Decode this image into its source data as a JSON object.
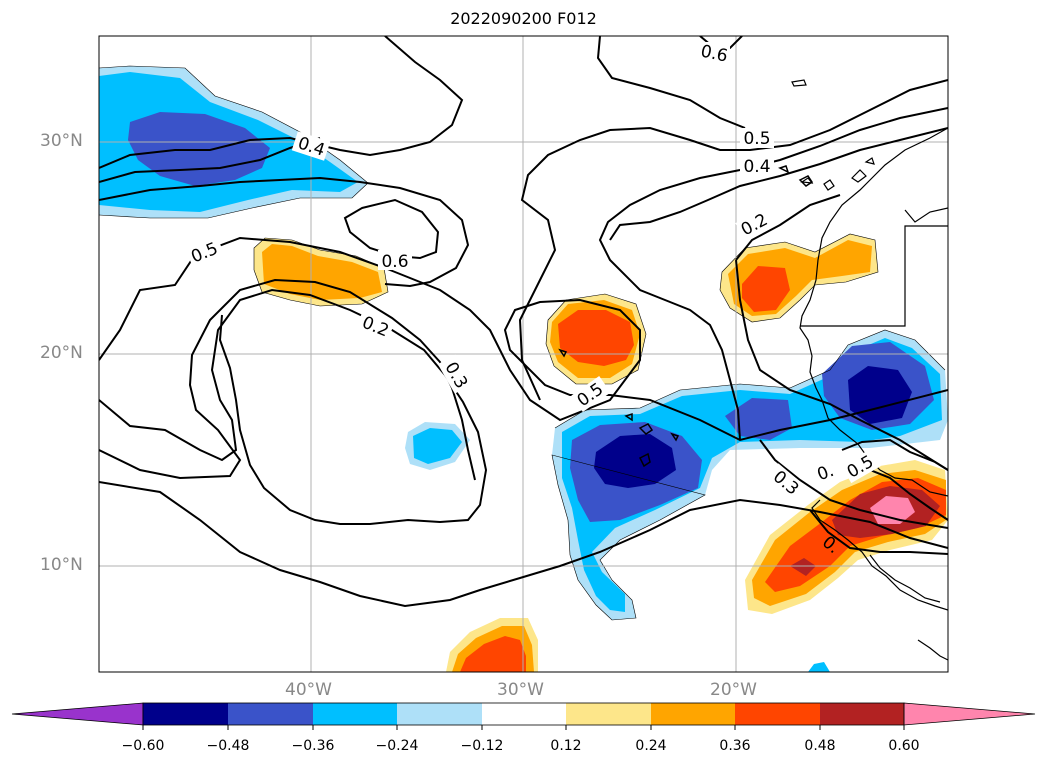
{
  "title": "2022090200 F012",
  "lat_labels": [
    "30°N",
    "20°N",
    "10°N"
  ],
  "lon_labels": [
    "40°W",
    "30°W",
    "20°W"
  ],
  "contour_labels": [
    "0.6",
    "0.5",
    "0.4",
    "0.4",
    "0.2",
    "0.5",
    "0.6",
    "0.2",
    "0.3",
    "0.5",
    "0.3",
    "0.",
    "0.5",
    "0."
  ],
  "colorbar": {
    "ticks": [
      "−0.60",
      "−0.48",
      "−0.36",
      "−0.24",
      "−0.12",
      "0.12",
      "0.24",
      "0.36",
      "0.48",
      "0.60"
    ],
    "colors": [
      "#9933cc",
      "#00008b",
      "#3a53c9",
      "#00bfff",
      "#aee0f8",
      "#ffffff",
      "#fde68a",
      "#ffa500",
      "#ff4500",
      "#b22222",
      "#ff85ad"
    ]
  },
  "field_colors": {
    "neg_light": "#aee0f8",
    "neg_mid": "#00bfff",
    "neg_strong": "#3a53c9",
    "neg_max": "#00008b",
    "pos_light": "#fde68a",
    "pos_mid": "#ffa500",
    "pos_strong": "#ff4500",
    "pos_deep": "#b22222",
    "pos_max": "#ff85ad"
  }
}
